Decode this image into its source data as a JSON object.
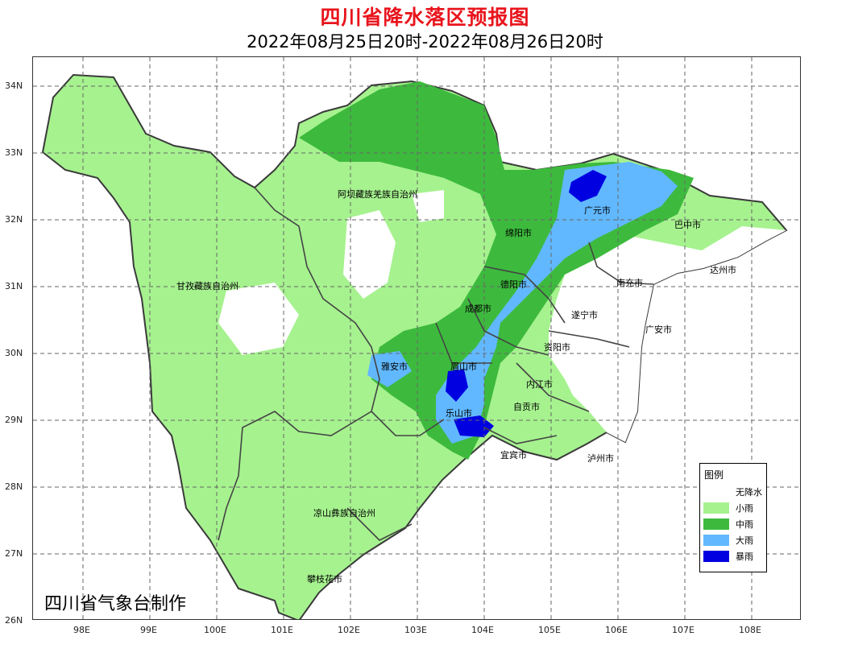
{
  "title": "四川省降水落区预报图",
  "subtitle": "2022年08月25日20时-2022年08月26日20时",
  "maker": "四川省气象台制作",
  "axes": {
    "lat_labels": [
      "34N",
      "33N",
      "32N",
      "31N",
      "30N",
      "29N",
      "28N",
      "27N",
      "26N"
    ],
    "lon_labels": [
      "98E",
      "99E",
      "100E",
      "101E",
      "102E",
      "103E",
      "104E",
      "105E",
      "106E",
      "107E",
      "108E"
    ],
    "grid": "dashed"
  },
  "cities": [
    "阿坝藏族羌族自治州",
    "甘孜藏族自治州",
    "凉山彝族自治州",
    "攀枝花市",
    "雅安市",
    "眉山市",
    "乐山市",
    "成都市",
    "德阳市",
    "绵阳市",
    "广元市",
    "巴中市",
    "达州市",
    "南充市",
    "遂宁市",
    "广安市",
    "资阳市",
    "内江市",
    "自贡市",
    "宜宾市",
    "泸州市"
  ],
  "legend": {
    "title": "图例",
    "items": [
      {
        "label": "无降水",
        "color": "#ffffff"
      },
      {
        "label": "小雨",
        "color": "#a6f28f"
      },
      {
        "label": "中雨",
        "color": "#3dba3d"
      },
      {
        "label": "大雨",
        "color": "#61b8ff"
      },
      {
        "label": "暴雨",
        "color": "#0000e1"
      }
    ]
  }
}
